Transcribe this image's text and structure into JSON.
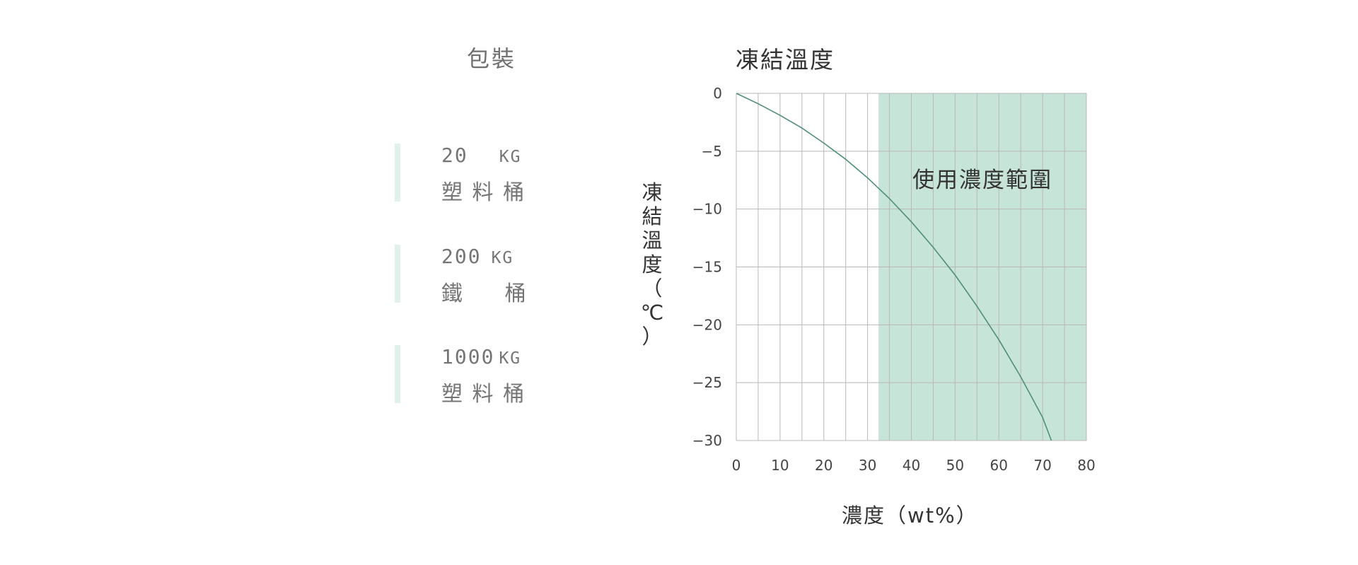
{
  "packaging": {
    "title": "包裝",
    "items": [
      {
        "weight": "20",
        "unit": "KG",
        "type": "塑 料 桶"
      },
      {
        "weight": "200",
        "unit": "KG",
        "type": "鐵     桶"
      },
      {
        "weight": "1000",
        "unit": "KG",
        "type": "塑 料 桶"
      }
    ]
  },
  "colors": {
    "accent_bar": "#e0f1ec",
    "range_fill": "#c7e4d9",
    "curve": "#4e8f7a",
    "grid": "#b8b8b8"
  },
  "chart_data": {
    "type": "line",
    "title": "凍結溫度",
    "xlabel": "濃度（wt%）",
    "ylabel": "凍結溫度（℃）",
    "xlim": [
      0,
      80
    ],
    "ylim": [
      -30,
      0
    ],
    "x_ticks": [
      0,
      10,
      20,
      30,
      40,
      50,
      60,
      70,
      80
    ],
    "y_ticks": [
      0,
      -5,
      -10,
      -15,
      -20,
      -25,
      -30
    ],
    "x_minor_step": 5,
    "grid": true,
    "series": [
      {
        "x": [
          0,
          5,
          10,
          15,
          20,
          25,
          30,
          35,
          40,
          45,
          50,
          55,
          60,
          65,
          70,
          72
        ],
        "y": [
          0,
          -0.9,
          -1.9,
          -3.0,
          -4.3,
          -5.7,
          -7.3,
          -9.1,
          -11.1,
          -13.3,
          -15.7,
          -18.4,
          -21.3,
          -24.5,
          -28.0,
          -30.0
        ]
      }
    ],
    "shaded_range": {
      "x": [
        32.5,
        80
      ],
      "label": "使用濃度範圍"
    }
  }
}
